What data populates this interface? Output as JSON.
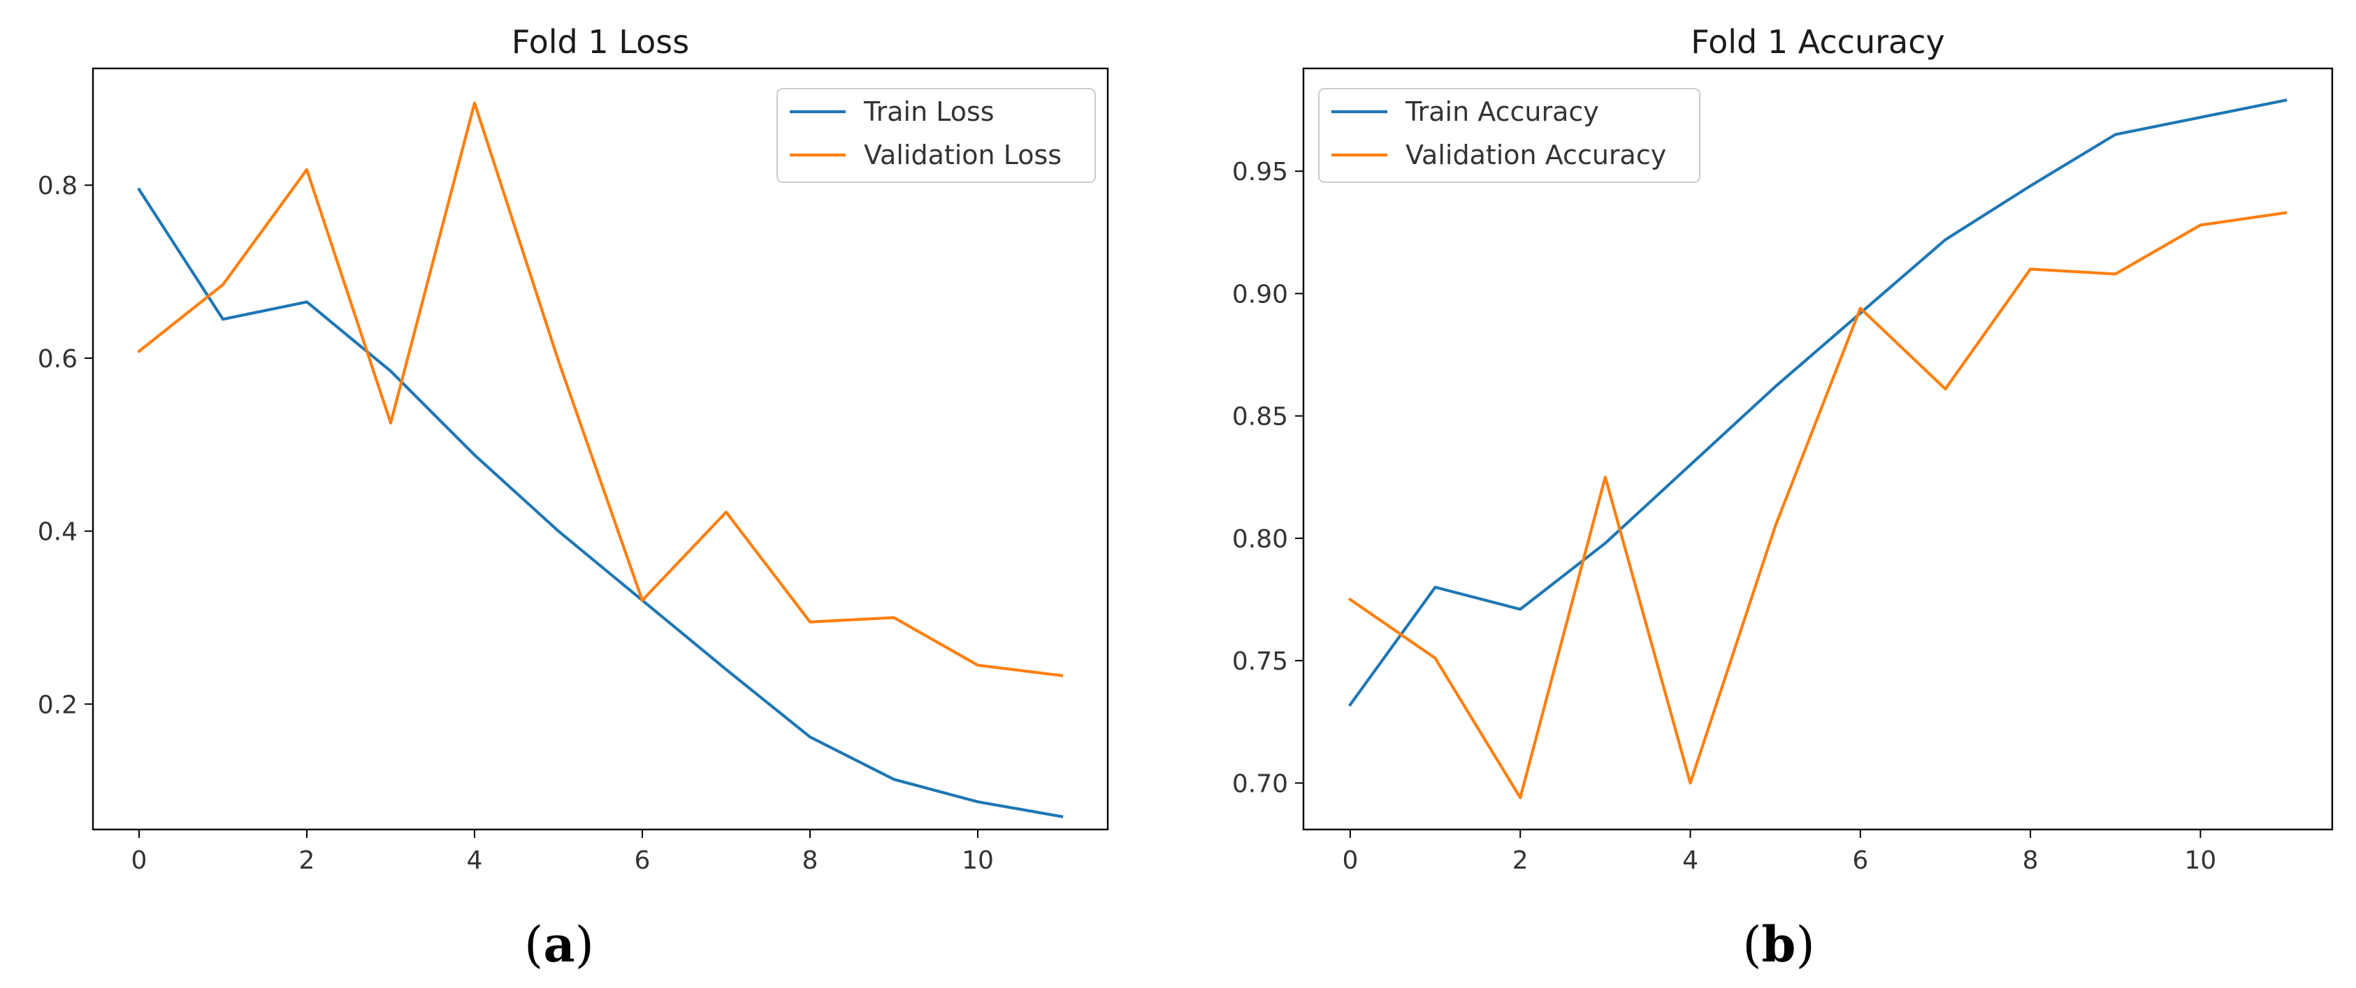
{
  "chart_data": [
    {
      "type": "line",
      "title": "Fold 1 Loss",
      "caption_letter": "a",
      "xlabel": "",
      "ylabel": "",
      "x": [
        0,
        1,
        2,
        3,
        4,
        5,
        6,
        7,
        8,
        9,
        10,
        11
      ],
      "xlim": [
        -0.55,
        11.55
      ],
      "ylim": [
        0.055,
        0.935
      ],
      "xticks": [
        0,
        2,
        4,
        6,
        8,
        10
      ],
      "xtick_labels": [
        "0",
        "2",
        "4",
        "6",
        "8",
        "10"
      ],
      "yticks": [
        0.2,
        0.4,
        0.6,
        0.8
      ],
      "ytick_labels": [
        "0.2",
        "0.4",
        "0.6",
        "0.8"
      ],
      "grid": false,
      "legend_position": "top-right",
      "series": [
        {
          "name": "Train Loss",
          "color": "#1f77b4",
          "values": [
            0.795,
            0.645,
            0.665,
            0.585,
            0.488,
            0.4,
            0.32,
            0.24,
            0.162,
            0.113,
            0.087,
            0.07
          ]
        },
        {
          "name": "Validation Loss",
          "color": "#ff7f0e",
          "values": [
            0.608,
            0.685,
            0.818,
            0.525,
            0.895,
            0.597,
            0.32,
            0.422,
            0.295,
            0.3,
            0.245,
            0.233
          ]
        }
      ]
    },
    {
      "type": "line",
      "title": "Fold 1 Accuracy",
      "caption_letter": "b",
      "xlabel": "",
      "ylabel": "",
      "x": [
        0,
        1,
        2,
        3,
        4,
        5,
        6,
        7,
        8,
        9,
        10,
        11
      ],
      "xlim": [
        -0.55,
        11.55
      ],
      "ylim": [
        0.681,
        0.992
      ],
      "xticks": [
        0,
        2,
        4,
        6,
        8,
        10
      ],
      "xtick_labels": [
        "0",
        "2",
        "4",
        "6",
        "8",
        "10"
      ],
      "yticks": [
        0.7,
        0.75,
        0.8,
        0.85,
        0.9,
        0.95
      ],
      "ytick_labels": [
        "0.70",
        "0.75",
        "0.80",
        "0.85",
        "0.90",
        "0.95"
      ],
      "grid": false,
      "legend_position": "top-left",
      "series": [
        {
          "name": "Train Accuracy",
          "color": "#1f77b4",
          "values": [
            0.732,
            0.78,
            0.771,
            0.798,
            0.83,
            0.862,
            0.892,
            0.922,
            0.944,
            0.965,
            0.972,
            0.979
          ]
        },
        {
          "name": "Validation Accuracy",
          "color": "#ff7f0e",
          "values": [
            0.775,
            0.751,
            0.694,
            0.825,
            0.7,
            0.805,
            0.894,
            0.861,
            0.91,
            0.908,
            0.928,
            0.933
          ]
        }
      ]
    }
  ]
}
